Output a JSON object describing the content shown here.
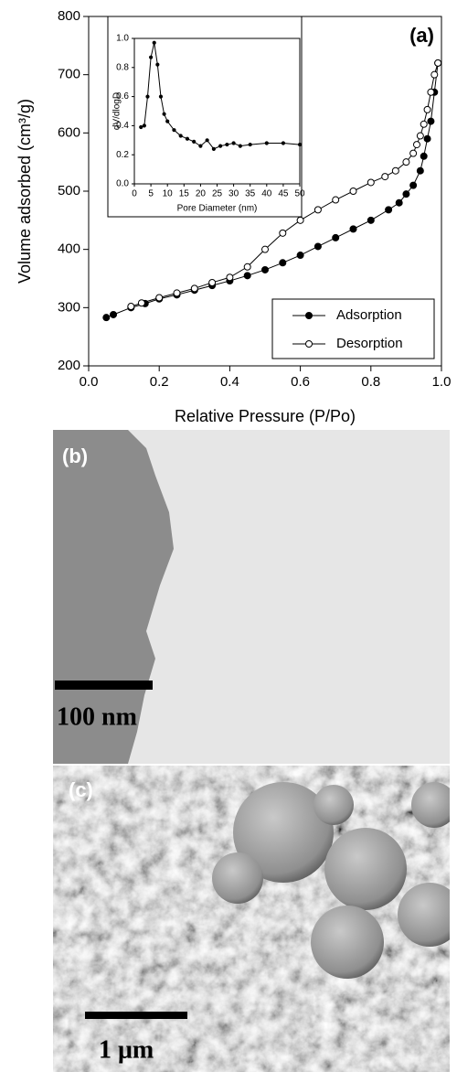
{
  "chart_data": [
    {
      "type": "line",
      "annotation": "(a)",
      "x_label": "Relative Pressure (P/Po)",
      "y_label": "Volume adsorbed (cm³/g)",
      "xlim": [
        0,
        1
      ],
      "ylim": [
        200,
        800
      ],
      "xticks": [
        {
          "value": 0,
          "label": "0.0"
        },
        0.2,
        0.4,
        0.6,
        0.8,
        {
          "value": 1,
          "label": "1.0"
        }
      ],
      "yticks": [
        200,
        300,
        400,
        500,
        600,
        700,
        800
      ],
      "legend": "lower right",
      "grid": false,
      "series": [
        {
          "name": "Adsorption",
          "marker": "filled",
          "color": "#000000",
          "x": [
            0.05,
            0.07,
            0.12,
            0.16,
            0.2,
            0.25,
            0.3,
            0.35,
            0.4,
            0.45,
            0.5,
            0.55,
            0.6,
            0.65,
            0.7,
            0.75,
            0.8,
            0.85,
            0.88,
            0.9,
            0.92,
            0.94,
            0.95,
            0.96,
            0.97,
            0.98,
            0.99
          ],
          "values": [
            283,
            288,
            300,
            307,
            315,
            322,
            330,
            338,
            346,
            355,
            365,
            377,
            390,
            405,
            420,
            435,
            450,
            468,
            480,
            495,
            510,
            535,
            560,
            590,
            620,
            670,
            720
          ]
        },
        {
          "name": "Desorption",
          "marker": "open",
          "color": "#000000",
          "x": [
            0.99,
            0.98,
            0.97,
            0.96,
            0.95,
            0.94,
            0.93,
            0.92,
            0.9,
            0.87,
            0.84,
            0.8,
            0.75,
            0.7,
            0.65,
            0.6,
            0.55,
            0.5,
            0.45,
            0.4,
            0.35,
            0.3,
            0.25,
            0.2,
            0.15,
            0.12
          ],
          "values": [
            720,
            700,
            670,
            640,
            615,
            595,
            580,
            565,
            550,
            535,
            525,
            515,
            500,
            485,
            468,
            450,
            428,
            400,
            370,
            352,
            343,
            333,
            325,
            317,
            308,
            302
          ]
        }
      ]
    },
    {
      "type": "line",
      "x_label": "Pore Diameter (nm)",
      "y_label": "dV/dlogD",
      "xlim": [
        0,
        50
      ],
      "ylim": [
        0,
        1
      ],
      "xticks": [
        0,
        5,
        10,
        15,
        20,
        25,
        30,
        35,
        40,
        45,
        50
      ],
      "yticks": [
        {
          "value": 0,
          "label": "0.0"
        },
        0.2,
        0.4,
        0.6,
        0.8,
        {
          "value": 1,
          "label": "1.0"
        }
      ],
      "grid": false,
      "color": "#000000",
      "x": [
        2,
        3,
        4,
        5,
        6,
        7,
        8,
        9,
        10,
        12,
        14,
        16,
        18,
        20,
        22,
        24,
        26,
        28,
        30,
        32,
        35,
        40,
        45,
        50
      ],
      "values": [
        0.39,
        0.4,
        0.6,
        0.87,
        0.97,
        0.82,
        0.6,
        0.48,
        0.43,
        0.37,
        0.33,
        0.31,
        0.29,
        0.26,
        0.3,
        0.24,
        0.26,
        0.27,
        0.28,
        0.26,
        0.27,
        0.28,
        0.28,
        0.27
      ]
    }
  ],
  "panels": [
    {
      "label": "(b)",
      "scale_bar": "100 nm"
    },
    {
      "label": "(c)",
      "scale_bar": "1 μm"
    }
  ]
}
